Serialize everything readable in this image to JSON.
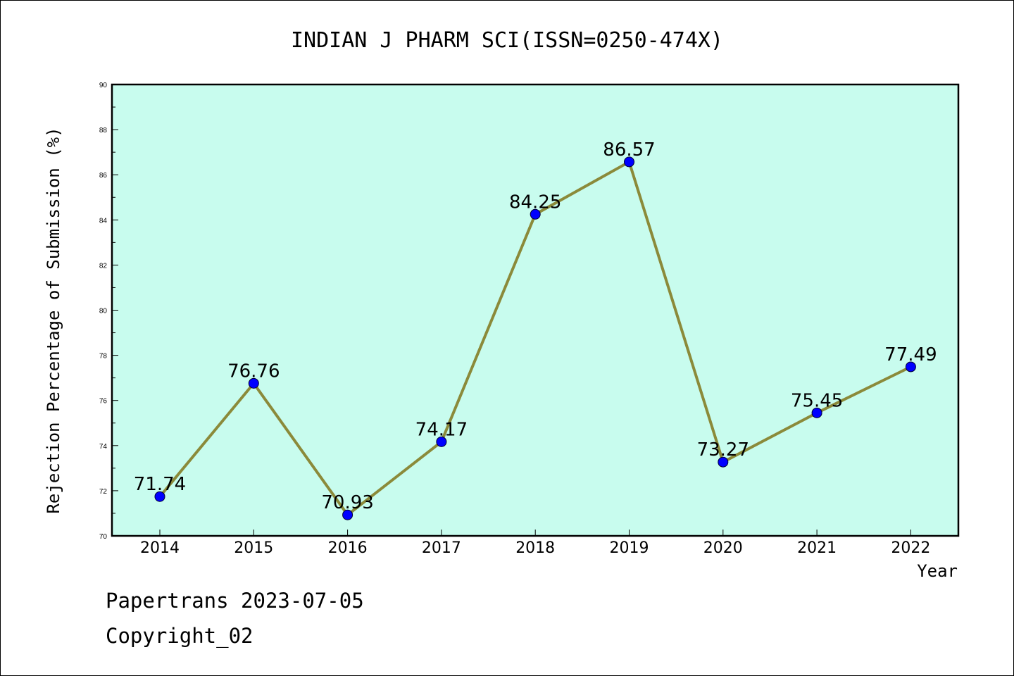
{
  "chart_data": {
    "type": "line",
    "title": "INDIAN J PHARM SCI(ISSN=0250-474X)",
    "xlabel": "Year",
    "ylabel": "Rejection Percentage of Submission (%)",
    "categories": [
      "2014",
      "2015",
      "2016",
      "2017",
      "2018",
      "2019",
      "2020",
      "2021",
      "2022"
    ],
    "values": [
      71.74,
      76.76,
      70.93,
      74.17,
      84.25,
      86.57,
      73.27,
      75.45,
      77.49
    ],
    "data_labels": [
      "71.74",
      "76.76",
      "70.93",
      "74.17",
      "84.25",
      "86.57",
      "73.27",
      "75.45",
      "77.49"
    ],
    "ylim": [
      70,
      90
    ],
    "yticks": [
      "70",
      "72",
      "74",
      "76",
      "78",
      "80",
      "82",
      "84",
      "86",
      "88",
      "90"
    ],
    "grid": false,
    "colors": {
      "plot_background": "#c8fcee",
      "line": "#8b8a3a",
      "marker": "#0000ff"
    }
  },
  "footer": {
    "line1": "Papertrans 2023-07-05",
    "line2": "Copyright_02"
  }
}
